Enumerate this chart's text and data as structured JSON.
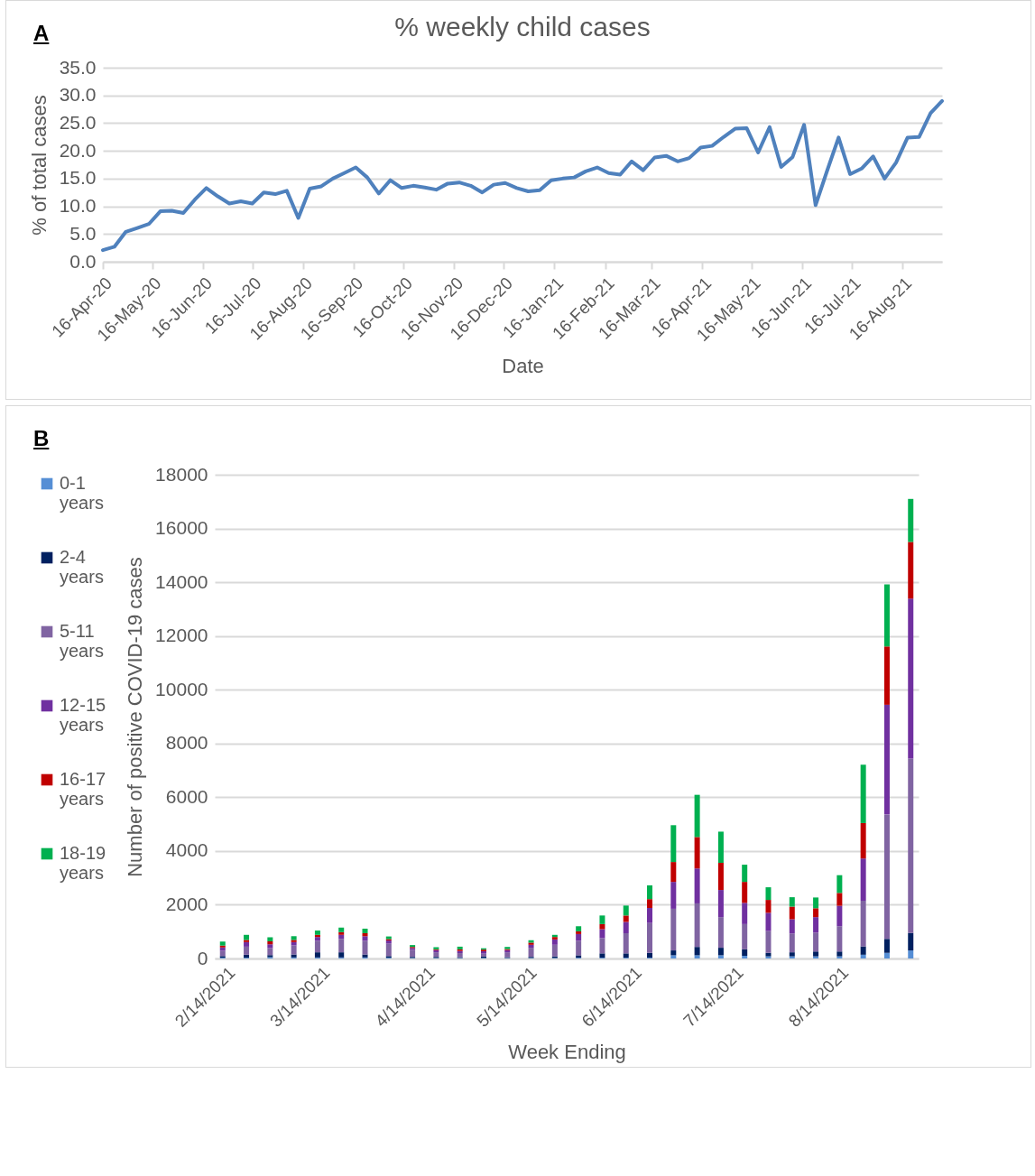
{
  "chart_data": [
    {
      "type": "line",
      "title": "% weekly child cases",
      "xlabel": "Date",
      "ylabel": "% of total cases",
      "annotations": [
        "A"
      ],
      "x": [
        "2020-04-16",
        "2020-04-23",
        "2020-04-30",
        "2020-05-07",
        "2020-05-14",
        "2020-05-21",
        "2020-05-28",
        "2020-06-04",
        "2020-06-11",
        "2020-06-18",
        "2020-06-25",
        "2020-07-02",
        "2020-07-09",
        "2020-07-16",
        "2020-07-23",
        "2020-07-30",
        "2020-08-06",
        "2020-08-13",
        "2020-08-20",
        "2020-08-27",
        "2020-09-03",
        "2020-09-10",
        "2020-09-17",
        "2020-09-24",
        "2020-10-01",
        "2020-10-08",
        "2020-10-15",
        "2020-10-22",
        "2020-10-29",
        "2020-11-05",
        "2020-11-12",
        "2020-11-19",
        "2020-11-26",
        "2020-12-03",
        "2020-12-10",
        "2020-12-17",
        "2020-12-24",
        "2020-12-31",
        "2021-01-07",
        "2021-01-14",
        "2021-01-21",
        "2021-01-28",
        "2021-02-04",
        "2021-02-11",
        "2021-02-18",
        "2021-02-25",
        "2021-03-04",
        "2021-03-11",
        "2021-03-18",
        "2021-03-25",
        "2021-04-01",
        "2021-04-08",
        "2021-04-15",
        "2021-04-22",
        "2021-04-29",
        "2021-05-06",
        "2021-05-13",
        "2021-05-20",
        "2021-05-27",
        "2021-06-03",
        "2021-06-10",
        "2021-06-17",
        "2021-06-24",
        "2021-07-01",
        "2021-07-08",
        "2021-07-15",
        "2021-07-22",
        "2021-07-29",
        "2021-08-05",
        "2021-08-12",
        "2021-08-19",
        "2021-08-26",
        "2021-09-02",
        "2021-09-09"
      ],
      "series": [
        {
          "color": "#4f81bd",
          "values": [
            2.1,
            2.7,
            5.4,
            6.1,
            6.8,
            9.1,
            9.2,
            8.8,
            11.2,
            13.3,
            11.8,
            10.5,
            10.9,
            10.5,
            12.5,
            12.2,
            12.8,
            7.9,
            13.2,
            13.6,
            15.0,
            16.0,
            17.0,
            15.2,
            12.3,
            14.7,
            13.3,
            13.7,
            13.4,
            13.0,
            14.1,
            14.3,
            13.7,
            12.5,
            13.9,
            14.2,
            13.3,
            12.7,
            12.9,
            14.7,
            15.0,
            15.2,
            16.3,
            17.0,
            16.0,
            15.7,
            18.1,
            16.5,
            18.8,
            19.1,
            18.1,
            18.7,
            20.6,
            20.9,
            22.5,
            24.0,
            24.1,
            19.7,
            24.3,
            17.1,
            18.9,
            24.7,
            10.2,
            16.4,
            22.4,
            15.8,
            16.8,
            19.0,
            15.0,
            17.9,
            22.4,
            22.5,
            26.8,
            29.0
          ]
        }
      ],
      "xlim": [
        "2020-04-16",
        "2021-09-09"
      ],
      "xticks": [
        {
          "value": "2020-04-16",
          "label": "16-Apr-20"
        },
        {
          "value": "2020-05-16",
          "label": "16-May-20"
        },
        {
          "value": "2020-06-16",
          "label": "16-Jun-20"
        },
        {
          "value": "2020-07-16",
          "label": "16-Jul-20"
        },
        {
          "value": "2020-08-16",
          "label": "16-Aug-20"
        },
        {
          "value": "2020-09-16",
          "label": "16-Sep-20"
        },
        {
          "value": "2020-10-16",
          "label": "16-Oct-20"
        },
        {
          "value": "2020-11-16",
          "label": "16-Nov-20"
        },
        {
          "value": "2020-12-16",
          "label": "16-Dec-20"
        },
        {
          "value": "2021-01-16",
          "label": "16-Jan-21"
        },
        {
          "value": "2021-02-16",
          "label": "16-Feb-21"
        },
        {
          "value": "2021-03-16",
          "label": "16-Mar-21"
        },
        {
          "value": "2021-04-16",
          "label": "16-Apr-21"
        },
        {
          "value": "2021-05-16",
          "label": "16-May-21"
        },
        {
          "value": "2021-06-16",
          "label": "16-Jun-21"
        },
        {
          "value": "2021-07-16",
          "label": "16-Jul-21"
        },
        {
          "value": "2021-08-16",
          "label": "16-Aug-21"
        }
      ],
      "ylim": [
        0,
        35
      ],
      "yticks": [
        {
          "value": 0,
          "label": "0.0"
        },
        {
          "value": 5,
          "label": "5.0"
        },
        {
          "value": 10,
          "label": "10.0"
        },
        {
          "value": 15,
          "label": "15.0"
        },
        {
          "value": 20,
          "label": "20.0"
        },
        {
          "value": 25,
          "label": "25.0"
        },
        {
          "value": 30,
          "label": "30.0"
        },
        {
          "value": 35,
          "label": "35.0"
        }
      ],
      "grid": "y",
      "line_style": "solid"
    },
    {
      "type": "bar",
      "stacked": true,
      "xlabel": "Week Ending",
      "ylabel": "Number of positive COVID-19 cases",
      "annotations": [
        "B"
      ],
      "x": [
        "2021-02-13",
        "2021-02-20",
        "2021-02-27",
        "2021-03-06",
        "2021-03-13",
        "2021-03-20",
        "2021-03-27",
        "2021-04-03",
        "2021-04-10",
        "2021-04-17",
        "2021-04-24",
        "2021-05-01",
        "2021-05-08",
        "2021-05-15",
        "2021-05-22",
        "2021-05-29",
        "2021-06-05",
        "2021-06-12",
        "2021-06-19",
        "2021-06-26",
        "2021-07-03",
        "2021-07-10",
        "2021-07-17",
        "2021-07-24",
        "2021-07-31",
        "2021-08-07",
        "2021-08-14",
        "2021-08-21",
        "2021-08-28",
        "2021-09-04"
      ],
      "series": [
        {
          "name": "0-1 years",
          "color": "#558ed5",
          "values": [
            30,
            30,
            50,
            40,
            40,
            40,
            40,
            30,
            20,
            20,
            20,
            20,
            20,
            20,
            20,
            30,
            30,
            30,
            30,
            120,
            120,
            120,
            100,
            80,
            80,
            80,
            80,
            140,
            210,
            300
          ]
        },
        {
          "name": "2-4 years",
          "color": "#002060",
          "values": [
            60,
            110,
            80,
            110,
            190,
            190,
            110,
            60,
            40,
            40,
            30,
            50,
            30,
            40,
            60,
            90,
            160,
            160,
            180,
            180,
            310,
            280,
            240,
            130,
            150,
            180,
            180,
            310,
            520,
            650
          ]
        },
        {
          "name": "5-11 years",
          "color": "#8064a2",
          "values": [
            200,
            300,
            260,
            340,
            430,
            500,
            510,
            460,
            260,
            170,
            150,
            110,
            180,
            340,
            430,
            540,
            570,
            750,
            1110,
            1550,
            1620,
            1140,
            940,
            810,
            700,
            700,
            940,
            1700,
            4630,
            6490
          ]
        },
        {
          "name": "12-15 years",
          "color": "#7030a0",
          "values": [
            120,
            170,
            140,
            120,
            140,
            150,
            170,
            120,
            70,
            80,
            80,
            90,
            80,
            110,
            200,
            250,
            330,
            420,
            560,
            1000,
            1300,
            1010,
            790,
            680,
            530,
            580,
            760,
            1570,
            4080,
            5950
          ]
        },
        {
          "name": "16-17 years",
          "color": "#c00000",
          "values": [
            70,
            80,
            110,
            80,
            80,
            100,
            110,
            50,
            40,
            30,
            60,
            60,
            40,
            80,
            90,
            100,
            190,
            240,
            330,
            740,
            1170,
            1010,
            780,
            480,
            470,
            330,
            480,
            1320,
            2170,
            2110
          ]
        },
        {
          "name": "18-19 years",
          "color": "#00b050",
          "values": [
            150,
            190,
            150,
            140,
            160,
            170,
            170,
            100,
            70,
            80,
            100,
            50,
            80,
            90,
            80,
            190,
            320,
            370,
            510,
            1370,
            1570,
            1160,
            640,
            470,
            350,
            400,
            660,
            2170,
            2310,
            1600
          ]
        }
      ],
      "xlim": [
        "2021-02-12",
        "2021-09-05"
      ],
      "xticks": [
        {
          "value": "2021-02-14",
          "label": "2/14/2021"
        },
        {
          "value": "2021-03-14",
          "label": "3/14/2021"
        },
        {
          "value": "2021-04-14",
          "label": "4/14/2021"
        },
        {
          "value": "2021-05-14",
          "label": "5/14/2021"
        },
        {
          "value": "2021-06-14",
          "label": "6/14/2021"
        },
        {
          "value": "2021-07-14",
          "label": "7/14/2021"
        },
        {
          "value": "2021-08-14",
          "label": "8/14/2021"
        }
      ],
      "ylim": [
        0,
        18000
      ],
      "yticks": [
        0,
        2000,
        4000,
        6000,
        8000,
        10000,
        12000,
        14000,
        16000,
        18000
      ],
      "grid": "y",
      "legend": "left"
    }
  ]
}
